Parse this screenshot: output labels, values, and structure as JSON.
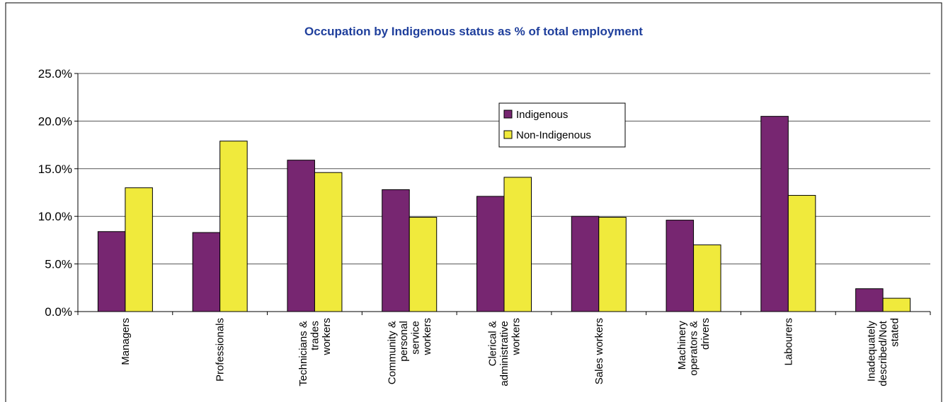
{
  "chart_data": {
    "type": "bar",
    "title": "Occupation by Indigenous status as % of total employment",
    "categories": [
      "Managers",
      "Professionals",
      "Technicians & trades workers",
      "Community & personal service workers",
      "Clerical & administrative workers",
      "Sales workers",
      "Machinery operators & drivers",
      "Labourers",
      "Inadequately described/Not stated"
    ],
    "series": [
      {
        "name": "Indigenous",
        "color": "#772671",
        "values": [
          8.4,
          8.3,
          15.9,
          12.8,
          12.1,
          10.0,
          9.6,
          20.5,
          2.4
        ]
      },
      {
        "name": "Non-Indigenous",
        "color": "#f0ea3c",
        "values": [
          13.0,
          17.9,
          14.6,
          9.9,
          14.1,
          9.9,
          7.0,
          12.2,
          1.4
        ]
      }
    ],
    "ylim": [
      0,
      25
    ],
    "yticks": [
      {
        "value": 0,
        "label": "0.0%"
      },
      {
        "value": 5,
        "label": "5.0%"
      },
      {
        "value": 10,
        "label": "10.0%"
      },
      {
        "value": 15,
        "label": "15.0%"
      },
      {
        "value": 20,
        "label": "20.0%"
      },
      {
        "value": 25,
        "label": "25.0%"
      }
    ],
    "grid": true
  }
}
